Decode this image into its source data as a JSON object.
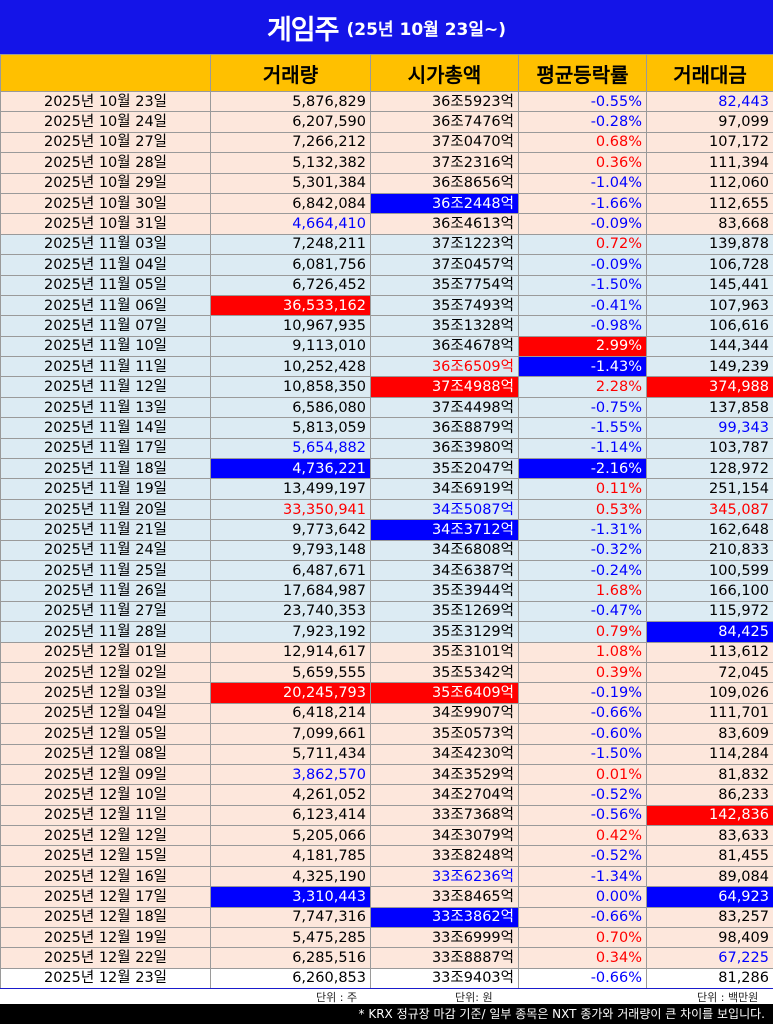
{
  "title": {
    "main": "게임주",
    "sub": "(25년 10월 23일~)"
  },
  "columns": [
    "",
    "거래량",
    "시가총액",
    "평균등락률",
    "거래대금"
  ],
  "rows": [
    {
      "date": "2025년 10월 23일",
      "volume": "5,876,829",
      "cap": "36조5923억",
      "rate": "-0.55%",
      "amount": "82,443",
      "group": "oct",
      "fx": {
        "rate": "t-blue",
        "amount": "t-blue"
      }
    },
    {
      "date": "2025년 10월 24일",
      "volume": "6,207,590",
      "cap": "36조7476억",
      "rate": "-0.28%",
      "amount": "97,099",
      "group": "oct",
      "fx": {
        "rate": "t-blue"
      }
    },
    {
      "date": "2025년 10월 27일",
      "volume": "7,266,212",
      "cap": "37조0470억",
      "rate": "0.68%",
      "amount": "107,172",
      "group": "oct",
      "fx": {
        "rate": "t-red"
      }
    },
    {
      "date": "2025년 10월 28일",
      "volume": "5,132,382",
      "cap": "37조2316억",
      "rate": "0.36%",
      "amount": "111,394",
      "group": "oct",
      "fx": {
        "rate": "t-red"
      }
    },
    {
      "date": "2025년 10월 29일",
      "volume": "5,301,384",
      "cap": "36조8656억",
      "rate": "-1.04%",
      "amount": "112,060",
      "group": "oct",
      "fx": {
        "rate": "t-blue"
      }
    },
    {
      "date": "2025년 10월 30일",
      "volume": "6,842,084",
      "cap": "36조2448억",
      "rate": "-1.66%",
      "amount": "112,655",
      "group": "oct",
      "fx": {
        "cap": "b-blue",
        "rate": "t-blue"
      }
    },
    {
      "date": "2025년 10월 31일",
      "volume": "4,664,410",
      "cap": "36조4613억",
      "rate": "-0.09%",
      "amount": "83,668",
      "group": "oct",
      "fx": {
        "volume": "t-blue",
        "rate": "t-blue"
      }
    },
    {
      "date": "2025년 11월 03일",
      "volume": "7,248,211",
      "cap": "37조1223억",
      "rate": "0.72%",
      "amount": "139,878",
      "group": "nov",
      "fx": {
        "rate": "t-red"
      }
    },
    {
      "date": "2025년 11월 04일",
      "volume": "6,081,756",
      "cap": "37조0457억",
      "rate": "-0.09%",
      "amount": "106,728",
      "group": "nov",
      "fx": {
        "rate": "t-blue"
      }
    },
    {
      "date": "2025년 11월 05일",
      "volume": "6,726,452",
      "cap": "35조7754억",
      "rate": "-1.50%",
      "amount": "145,441",
      "group": "nov",
      "fx": {
        "rate": "t-blue"
      }
    },
    {
      "date": "2025년 11월 06일",
      "volume": "36,533,162",
      "cap": "35조7493억",
      "rate": "-0.41%",
      "amount": "107,963",
      "group": "nov",
      "fx": {
        "volume": "b-red",
        "rate": "t-blue"
      }
    },
    {
      "date": "2025년 11월 07일",
      "volume": "10,967,935",
      "cap": "35조1328억",
      "rate": "-0.98%",
      "amount": "106,616",
      "group": "nov",
      "fx": {
        "rate": "t-blue"
      }
    },
    {
      "date": "2025년 11월 10일",
      "volume": "9,113,010",
      "cap": "36조4678억",
      "rate": "2.99%",
      "amount": "144,344",
      "group": "nov",
      "fx": {
        "rate": "b-red"
      }
    },
    {
      "date": "2025년 11월 11일",
      "volume": "10,252,428",
      "cap": "36조6509억",
      "rate": "-1.43%",
      "amount": "149,239",
      "group": "nov",
      "fx": {
        "cap": "t-red",
        "rate": "b-blue"
      }
    },
    {
      "date": "2025년 11월 12일",
      "volume": "10,858,350",
      "cap": "37조4988억",
      "rate": "2.28%",
      "amount": "374,988",
      "group": "nov",
      "fx": {
        "cap": "b-red",
        "rate": "t-red",
        "amount": "b-red"
      }
    },
    {
      "date": "2025년 11월 13일",
      "volume": "6,586,080",
      "cap": "37조4498억",
      "rate": "-0.75%",
      "amount": "137,858",
      "group": "nov",
      "fx": {
        "rate": "t-blue"
      }
    },
    {
      "date": "2025년 11월 14일",
      "volume": "5,813,059",
      "cap": "36조8879억",
      "rate": "-1.55%",
      "amount": "99,343",
      "group": "nov",
      "fx": {
        "rate": "t-blue",
        "amount": "t-blue"
      }
    },
    {
      "date": "2025년 11월 17일",
      "volume": "5,654,882",
      "cap": "36조3980억",
      "rate": "-1.14%",
      "amount": "103,787",
      "group": "nov",
      "fx": {
        "volume": "t-blue",
        "rate": "t-blue"
      }
    },
    {
      "date": "2025년 11월 18일",
      "volume": "4,736,221",
      "cap": "35조2047억",
      "rate": "-2.16%",
      "amount": "128,972",
      "group": "nov",
      "fx": {
        "volume": "b-blue",
        "rate": "b-blue"
      }
    },
    {
      "date": "2025년 11월 19일",
      "volume": "13,499,197",
      "cap": "34조6919억",
      "rate": "0.11%",
      "amount": "251,154",
      "group": "nov",
      "fx": {
        "rate": "t-red"
      }
    },
    {
      "date": "2025년 11월 20일",
      "volume": "33,350,941",
      "cap": "34조5087억",
      "rate": "0.53%",
      "amount": "345,087",
      "group": "nov",
      "fx": {
        "volume": "t-red",
        "cap": "t-blue",
        "rate": "t-red",
        "amount": "t-red"
      }
    },
    {
      "date": "2025년 11월 21일",
      "volume": "9,773,642",
      "cap": "34조3712억",
      "rate": "-1.31%",
      "amount": "162,648",
      "group": "nov",
      "fx": {
        "cap": "b-blue",
        "rate": "t-blue"
      }
    },
    {
      "date": "2025년 11월 24일",
      "volume": "9,793,148",
      "cap": "34조6808억",
      "rate": "-0.32%",
      "amount": "210,833",
      "group": "nov",
      "fx": {
        "rate": "t-blue"
      }
    },
    {
      "date": "2025년 11월 25일",
      "volume": "6,487,671",
      "cap": "34조6387억",
      "rate": "-0.24%",
      "amount": "100,599",
      "group": "nov",
      "fx": {
        "rate": "t-blue"
      }
    },
    {
      "date": "2025년 11월 26일",
      "volume": "17,684,987",
      "cap": "35조3944억",
      "rate": "1.68%",
      "amount": "166,100",
      "group": "nov",
      "fx": {
        "rate": "t-red"
      }
    },
    {
      "date": "2025년 11월 27일",
      "volume": "23,740,353",
      "cap": "35조1269억",
      "rate": "-0.47%",
      "amount": "115,972",
      "group": "nov",
      "fx": {
        "rate": "t-blue"
      }
    },
    {
      "date": "2025년 11월 28일",
      "volume": "7,923,192",
      "cap": "35조3129억",
      "rate": "0.79%",
      "amount": "84,425",
      "group": "nov",
      "fx": {
        "rate": "t-red",
        "amount": "b-blue"
      }
    },
    {
      "date": "2025년 12월 01일",
      "volume": "12,914,617",
      "cap": "35조3101억",
      "rate": "1.08%",
      "amount": "113,612",
      "group": "dec",
      "fx": {
        "rate": "t-red"
      }
    },
    {
      "date": "2025년 12월 02일",
      "volume": "5,659,555",
      "cap": "35조5342억",
      "rate": "0.39%",
      "amount": "72,045",
      "group": "dec",
      "fx": {
        "rate": "t-red"
      }
    },
    {
      "date": "2025년 12월 03일",
      "volume": "20,245,793",
      "cap": "35조6409억",
      "rate": "-0.19%",
      "amount": "109,026",
      "group": "dec",
      "fx": {
        "volume": "b-red",
        "cap": "b-red",
        "rate": "t-blue"
      }
    },
    {
      "date": "2025년 12월 04일",
      "volume": "6,418,214",
      "cap": "34조9907억",
      "rate": "-0.66%",
      "amount": "111,701",
      "group": "dec",
      "fx": {
        "rate": "t-blue"
      }
    },
    {
      "date": "2025년 12월 05일",
      "volume": "7,099,661",
      "cap": "35조0573억",
      "rate": "-0.60%",
      "amount": "83,609",
      "group": "dec",
      "fx": {
        "rate": "t-blue"
      }
    },
    {
      "date": "2025년 12월 08일",
      "volume": "5,711,434",
      "cap": "34조4230억",
      "rate": "-1.50%",
      "amount": "114,284",
      "group": "dec",
      "fx": {
        "rate": "t-blue"
      }
    },
    {
      "date": "2025년 12월 09일",
      "volume": "3,862,570",
      "cap": "34조3529억",
      "rate": "0.01%",
      "amount": "81,832",
      "group": "dec",
      "fx": {
        "volume": "t-blue",
        "rate": "t-red"
      }
    },
    {
      "date": "2025년 12월 10일",
      "volume": "4,261,052",
      "cap": "34조2704억",
      "rate": "-0.52%",
      "amount": "86,233",
      "group": "dec",
      "fx": {
        "rate": "t-blue"
      }
    },
    {
      "date": "2025년 12월 11일",
      "volume": "6,123,414",
      "cap": "33조7368억",
      "rate": "-0.56%",
      "amount": "142,836",
      "group": "dec",
      "fx": {
        "rate": "t-blue",
        "amount": "b-red"
      }
    },
    {
      "date": "2025년 12월 12일",
      "volume": "5,205,066",
      "cap": "34조3079억",
      "rate": "0.42%",
      "amount": "83,633",
      "group": "dec",
      "fx": {
        "rate": "t-red"
      }
    },
    {
      "date": "2025년 12월 15일",
      "volume": "4,181,785",
      "cap": "33조8248억",
      "rate": "-0.52%",
      "amount": "81,455",
      "group": "dec",
      "fx": {
        "rate": "t-blue"
      }
    },
    {
      "date": "2025년 12월 16일",
      "volume": "4,325,190",
      "cap": "33조6236억",
      "rate": "-1.34%",
      "amount": "89,084",
      "group": "dec",
      "fx": {
        "cap": "t-blue",
        "rate": "t-blue"
      }
    },
    {
      "date": "2025년 12월 17일",
      "volume": "3,310,443",
      "cap": "33조8465억",
      "rate": "0.00%",
      "amount": "64,923",
      "group": "dec",
      "fx": {
        "volume": "b-blue",
        "rate": "t-blue",
        "amount": "b-blue"
      }
    },
    {
      "date": "2025년 12월 18일",
      "volume": "7,747,316",
      "cap": "33조3862억",
      "rate": "-0.66%",
      "amount": "83,257",
      "group": "dec",
      "fx": {
        "cap": "b-blue",
        "rate": "t-blue"
      }
    },
    {
      "date": "2025년 12월 19일",
      "volume": "5,475,285",
      "cap": "33조6999억",
      "rate": "0.70%",
      "amount": "98,409",
      "group": "dec",
      "fx": {
        "rate": "t-red"
      }
    },
    {
      "date": "2025년 12월 22일",
      "volume": "6,285,516",
      "cap": "33조8887억",
      "rate": "0.34%",
      "amount": "67,225",
      "group": "dec",
      "fx": {
        "rate": "t-red",
        "amount": "t-blue"
      }
    },
    {
      "date": "2025년 12월 23일",
      "volume": "6,260,853",
      "cap": "33조9403억",
      "rate": "-0.66%",
      "amount": "81,286",
      "group": "last",
      "fx": {
        "rate": "t-blue"
      }
    }
  ],
  "units": {
    "volume": "단위 : 주",
    "cap": "단위: 원",
    "amount": "단위 : 백만원"
  },
  "footnote": "* KRX 정규장 마감 기준/ 일부 종목은 NXT 종가와 거래량이 큰 차이를 보입니다.",
  "colors": {
    "title_bg": "#1414e8",
    "header_bg": "#ffc000",
    "up": "#ff0000",
    "down": "#0000ff",
    "row_oct": "#fde7dc",
    "row_nov": "#dcebf3",
    "row_dec": "#fde7dc"
  }
}
